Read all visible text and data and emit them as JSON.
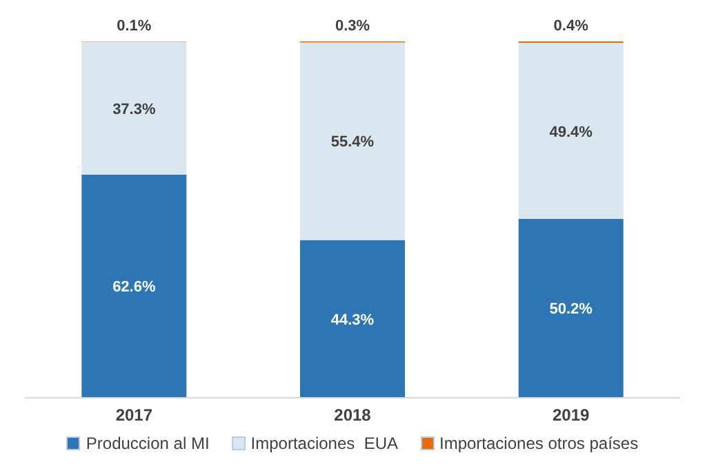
{
  "chart_data": {
    "type": "bar",
    "stacked": true,
    "categories": [
      "2017",
      "2018",
      "2019"
    ],
    "series": [
      {
        "name": "Produccion al MI",
        "color": "#2e75b6",
        "values": [
          62.6,
          44.3,
          50.2
        ],
        "value_labels": [
          "62.6%",
          "44.3%",
          "50.2%"
        ]
      },
      {
        "name": "Importaciones  EUA",
        "color": "#dbe7f0",
        "values": [
          37.3,
          55.4,
          49.4
        ],
        "value_labels": [
          "37.3%",
          "55.4%",
          "49.4%"
        ]
      },
      {
        "name": "Importaciones otros países",
        "color": "#e46c0a",
        "values": [
          0.1,
          0.3,
          0.4
        ],
        "value_labels": [
          "0.1%",
          "0.3%",
          "0.4%"
        ]
      }
    ],
    "legend": "bottom",
    "grid": false
  }
}
